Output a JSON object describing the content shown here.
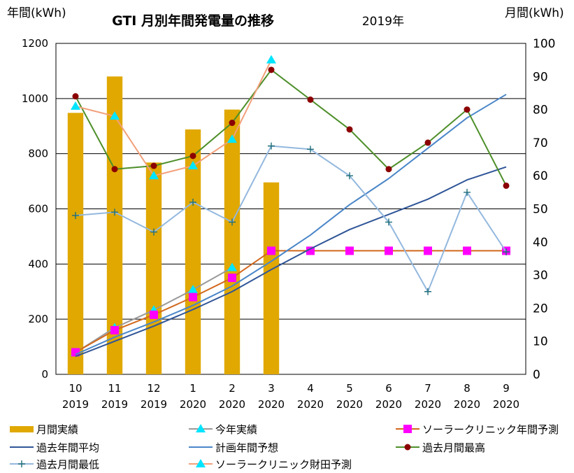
{
  "chart_data": {
    "type": "bar+line",
    "title": "GTI 月別年間発電量の推移",
    "subtitle": "2019年",
    "y_left_label": "年間(kWh)",
    "y_right_label": "月間(kWh)",
    "y_left_range": [
      0,
      1200
    ],
    "y_right_range": [
      0,
      100
    ],
    "y_left_ticks": [
      "0",
      "200",
      "400",
      "600",
      "800",
      "1000",
      "1200"
    ],
    "y_right_ticks": [
      "0",
      "10",
      "20",
      "30",
      "40",
      "50",
      "60",
      "70",
      "80",
      "90",
      "100"
    ],
    "categories": [
      {
        "month": "10",
        "year": "2019"
      },
      {
        "month": "11",
        "year": "2019"
      },
      {
        "month": "12",
        "year": "2019"
      },
      {
        "month": "1",
        "year": "2020"
      },
      {
        "month": "2",
        "year": "2020"
      },
      {
        "month": "3",
        "year": "2020"
      },
      {
        "month": "4",
        "year": "2020"
      },
      {
        "month": "5",
        "year": "2020"
      },
      {
        "month": "6",
        "year": "2020"
      },
      {
        "month": "7",
        "year": "2020"
      },
      {
        "month": "8",
        "year": "2020"
      },
      {
        "month": "9",
        "year": "2020"
      }
    ],
    "series": [
      {
        "name": "月間実績",
        "kind": "bar",
        "axis": "right",
        "color": "#E0A800",
        "values": [
          79,
          90,
          64,
          74,
          80,
          58,
          null,
          null,
          null,
          null,
          null,
          null
        ]
      },
      {
        "name": "今年実績",
        "kind": "line",
        "axis": "left",
        "color": "#999999",
        "marker": "triangle",
        "marker_color": "#00E5FF",
        "values": [
          79,
          169,
          233,
          307,
          387,
          null,
          null,
          null,
          null,
          null,
          null,
          null
        ]
      },
      {
        "name": "ソーラークリニック年間予測",
        "kind": "line",
        "axis": "left",
        "color": "#D2691E",
        "marker": "square",
        "marker_color": "#FF00FF",
        "values": [
          80,
          160,
          216,
          280,
          350,
          448,
          448,
          448,
          448,
          448,
          448,
          448
        ]
      },
      {
        "name": "過去年間平均",
        "kind": "line",
        "axis": "left",
        "color": "#2F5597",
        "marker": "none",
        "values": [
          65,
          120,
          175,
          235,
          300,
          380,
          455,
          525,
          580,
          635,
          705,
          752
        ]
      },
      {
        "name": "計画年間予想",
        "kind": "line",
        "axis": "left",
        "color": "#4A86C8",
        "marker": "none",
        "values": [
          72,
          135,
          190,
          250,
          320,
          410,
          505,
          615,
          710,
          820,
          930,
          1015
        ]
      },
      {
        "name": "過去月間最高",
        "kind": "line",
        "axis": "right",
        "color": "#4E8F2A",
        "marker": "circle",
        "marker_color": "#8B0000",
        "values": [
          84,
          62,
          63,
          66,
          76,
          92,
          83,
          74,
          62,
          70,
          80,
          57
        ]
      },
      {
        "name": "過去月間最低",
        "kind": "line",
        "axis": "right",
        "color": "#93B8DE",
        "marker": "plus",
        "marker_color": "#1F6E7A",
        "values": [
          48,
          49,
          43,
          52,
          46,
          69,
          68,
          60,
          46,
          25,
          55,
          37
        ]
      },
      {
        "name": "ソーラークリニック財田予測",
        "kind": "line",
        "axis": "right",
        "color": "#F2A07B",
        "marker": "triangle",
        "marker_color": "#00E5FF",
        "values": [
          81,
          78,
          60,
          63,
          71,
          95,
          null,
          null,
          null,
          null,
          null,
          null
        ]
      }
    ],
    "legend": [
      {
        "label": "月間実績",
        "key": "bar"
      },
      {
        "label": "今年実績",
        "key": "line"
      },
      {
        "label": "ソーラークリニック年間予測",
        "key": "line"
      },
      {
        "label": "過去年間平均",
        "key": "line"
      },
      {
        "label": "計画年間予想",
        "key": "line"
      },
      {
        "label": "過去月間最高",
        "key": "line"
      },
      {
        "label": "過去月間最低",
        "key": "line"
      },
      {
        "label": "ソーラークリニック財田予測",
        "key": "line"
      }
    ]
  }
}
